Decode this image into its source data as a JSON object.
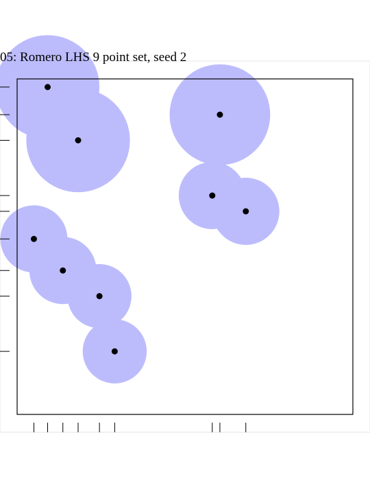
{
  "chart_data": {
    "type": "scatter",
    "title": "05: Romero LHS 9 point set, seed 2",
    "xlabel": "",
    "ylabel": "",
    "grid": false,
    "xlim": [
      0,
      9
    ],
    "ylim": [
      0,
      9
    ],
    "points": [
      {
        "x": 1.0,
        "y": 8.75,
        "radius": 1.7
      },
      {
        "x": 2.0,
        "y": 7.4,
        "radius": 1.7
      },
      {
        "x": 6.65,
        "y": 8.05,
        "radius": 1.65
      },
      {
        "x": 6.4,
        "y": 6.0,
        "radius": 1.1
      },
      {
        "x": 7.5,
        "y": 5.6,
        "radius": 1.1
      },
      {
        "x": 0.55,
        "y": 4.9,
        "radius": 1.1
      },
      {
        "x": 1.5,
        "y": 4.1,
        "radius": 1.1
      },
      {
        "x": 2.7,
        "y": 3.45,
        "radius": 1.05
      },
      {
        "x": 3.2,
        "y": 2.05,
        "radius": 1.05
      }
    ],
    "colors": {
      "circle_fill": "#bcbcfd",
      "point": "#000000",
      "axis": "#000000"
    }
  }
}
